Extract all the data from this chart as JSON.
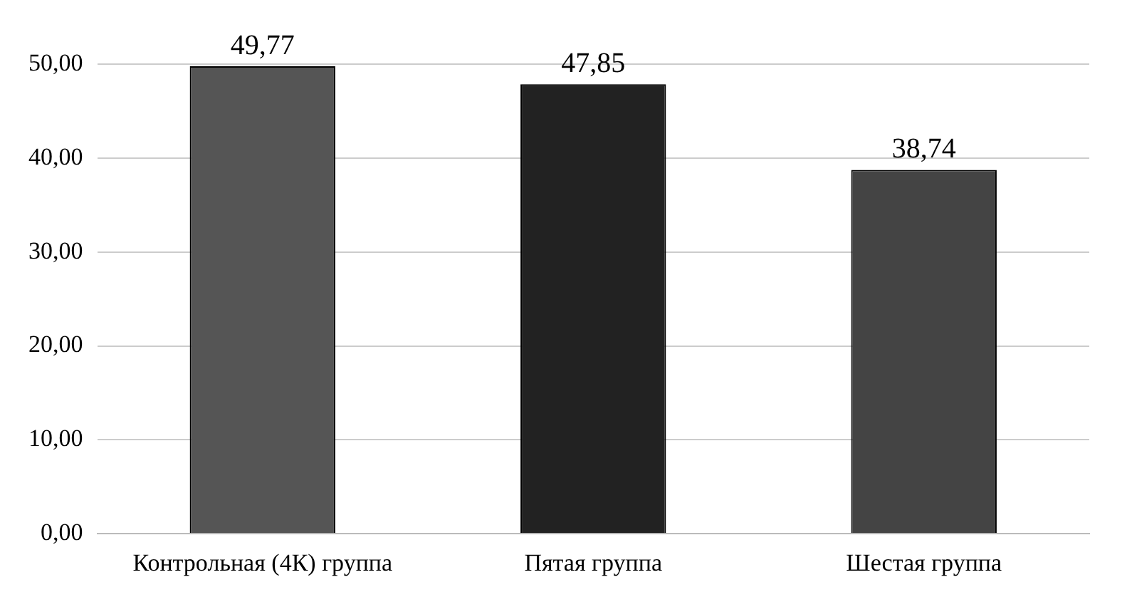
{
  "chart_data": {
    "type": "bar",
    "categories": [
      "Контрольная (4К) группа",
      "Пятая группа",
      "Шестая группа"
    ],
    "values": [
      49.77,
      47.85,
      38.74
    ],
    "colors": [
      "#555555",
      "#222222",
      "#444444"
    ],
    "value_labels": [
      "49,77",
      "47,85",
      "38,74"
    ],
    "ylim": [
      0,
      50
    ],
    "yticks": [
      {
        "value": 0,
        "label": "0,00"
      },
      {
        "value": 10,
        "label": "10,00"
      },
      {
        "value": 20,
        "label": "20,00"
      },
      {
        "value": 30,
        "label": "30,00"
      },
      {
        "value": 40,
        "label": "40,00"
      },
      {
        "value": 50,
        "label": "50,00"
      }
    ],
    "grid": "y",
    "legend": false
  }
}
